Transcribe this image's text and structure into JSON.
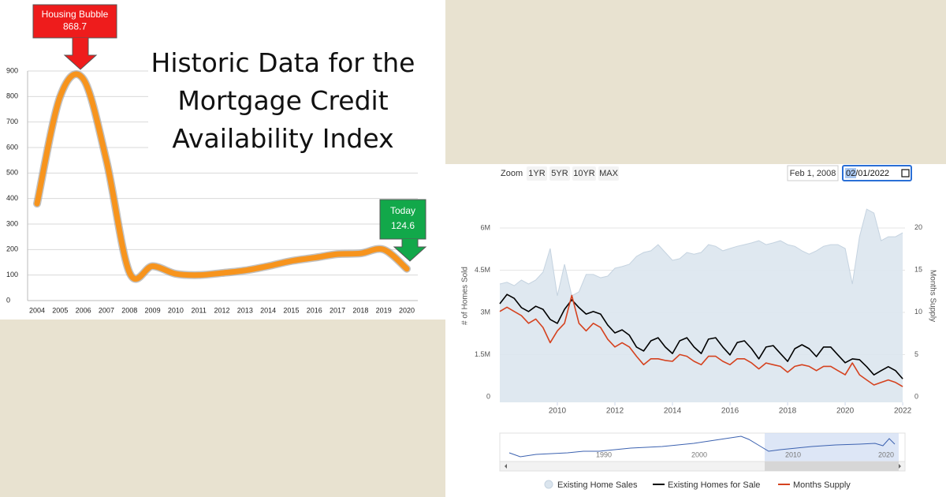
{
  "chart_data": [
    {
      "type": "line",
      "title": "Historic Data for the Mortgage Credit Availability Index",
      "categories": [
        "2004",
        "2005",
        "2006",
        "2007",
        "2008",
        "2009",
        "2010",
        "2011",
        "2012",
        "2013",
        "2014",
        "2015",
        "2016",
        "2017",
        "2018",
        "2019",
        "2020"
      ],
      "values": [
        380,
        800,
        868.7,
        550,
        110,
        135,
        105,
        100,
        108,
        118,
        135,
        155,
        168,
        182,
        185,
        200,
        124.6
      ],
      "color": "#f7941d",
      "ylim": [
        0,
        900
      ],
      "yticks": [
        0,
        100,
        200,
        300,
        400,
        500,
        600,
        700,
        800,
        900
      ],
      "grid": true,
      "annotations": [
        {
          "label": "Housing Bubble",
          "value": 868.7,
          "color": "#ee1c1c"
        },
        {
          "label": "Today",
          "value": 124.6,
          "color": "#12a84a"
        }
      ]
    },
    {
      "type": "line",
      "zoom": {
        "label": "Zoom",
        "buttons": [
          "1YR",
          "5YR",
          "10YR",
          "MAX"
        ]
      },
      "range": {
        "from": "Feb 1, 2008",
        "to": "02/01/2022"
      },
      "x": [
        2008,
        2008.25,
        2008.5,
        2008.75,
        2009,
        2009.25,
        2009.5,
        2009.75,
        2010,
        2010.25,
        2010.5,
        2010.75,
        2011,
        2011.25,
        2011.5,
        2011.75,
        2012,
        2012.25,
        2012.5,
        2012.75,
        2013,
        2013.25,
        2013.5,
        2013.75,
        2014,
        2014.25,
        2014.5,
        2014.75,
        2015,
        2015.25,
        2015.5,
        2015.75,
        2016,
        2016.25,
        2016.5,
        2016.75,
        2017,
        2017.25,
        2017.5,
        2017.75,
        2018,
        2018.25,
        2018.5,
        2018.75,
        2019,
        2019.25,
        2019.5,
        2019.75,
        2020,
        2020.25,
        2020.5,
        2020.75,
        2021,
        2021.25,
        2021.5,
        2021.75,
        2022
      ],
      "xlim": [
        2008,
        2022.08
      ],
      "xticks": [
        2010,
        2012,
        2014,
        2016,
        2018,
        2020,
        2022
      ],
      "ylim": [
        0,
        7150000
      ],
      "yticks": [
        0,
        {
          "value": 1500000,
          "label": "1.5M"
        },
        {
          "value": 3000000,
          "label": "3M"
        },
        {
          "value": 4500000,
          "label": "4.5M"
        },
        {
          "value": 6000000,
          "label": "6M"
        }
      ],
      "y2lim": [
        0,
        23.8
      ],
      "y2ticks": [
        0,
        5,
        10,
        15,
        20
      ],
      "y_label": "# of Homes Sold",
      "y2_label": "Months Supply",
      "grid": true,
      "series": [
        {
          "name": "Existing Home Sales",
          "color": "#dbe5ee",
          "area": true,
          "values": [
            4010000,
            4070000,
            3950000,
            4150000,
            4010000,
            4150000,
            4430000,
            5270000,
            3590000,
            4710000,
            3590000,
            3730000,
            4350000,
            4350000,
            4230000,
            4290000,
            4570000,
            4630000,
            4710000,
            4990000,
            5130000,
            5190000,
            5410000,
            5130000,
            4850000,
            4910000,
            5130000,
            5070000,
            5130000,
            5410000,
            5350000,
            5190000,
            5270000,
            5350000,
            5410000,
            5470000,
            5550000,
            5410000,
            5470000,
            5550000,
            5410000,
            5350000,
            5190000,
            5070000,
            5190000,
            5350000,
            5410000,
            5410000,
            5270000,
            4010000,
            5690000,
            6670000,
            6530000,
            5550000,
            5690000,
            5690000,
            5830000
          ]
        },
        {
          "name": "Existing Homes for Sale",
          "color": "#000000",
          "values": [
            3310000,
            3640000,
            3500000,
            3170000,
            3030000,
            3220000,
            3110000,
            2750000,
            2610000,
            3110000,
            3450000,
            3170000,
            2940000,
            3030000,
            2940000,
            2550000,
            2270000,
            2380000,
            2190000,
            1770000,
            1630000,
            1990000,
            2100000,
            1770000,
            1540000,
            1990000,
            2100000,
            1770000,
            1540000,
            2050000,
            2100000,
            1770000,
            1490000,
            1930000,
            1990000,
            1710000,
            1350000,
            1770000,
            1820000,
            1540000,
            1260000,
            1710000,
            1850000,
            1710000,
            1430000,
            1770000,
            1770000,
            1490000,
            1210000,
            1350000,
            1320000,
            1070000,
            780000,
            930000,
            1070000,
            930000,
            640000
          ]
        },
        {
          "name": "Months Supply",
          "color": "#d5421f",
          "axis": "y2",
          "values": [
            10.1,
            10.6,
            10.1,
            9.6,
            8.7,
            9.2,
            8.2,
            6.4,
            7.8,
            8.7,
            12.0,
            8.7,
            7.8,
            8.7,
            8.2,
            6.8,
            5.9,
            6.4,
            5.9,
            4.8,
            3.8,
            4.5,
            4.5,
            4.3,
            4.2,
            5.0,
            4.8,
            4.2,
            3.8,
            4.8,
            4.8,
            4.2,
            3.8,
            4.5,
            4.5,
            4.0,
            3.3,
            4.0,
            3.8,
            3.6,
            2.9,
            3.6,
            3.8,
            3.6,
            3.1,
            3.6,
            3.6,
            3.1,
            2.6,
            4.0,
            2.6,
            2.0,
            1.4,
            1.7,
            2.0,
            1.7,
            1.2
          ]
        }
      ],
      "navigator_ticks": [
        1990,
        2000,
        2010,
        2020
      ]
    }
  ]
}
